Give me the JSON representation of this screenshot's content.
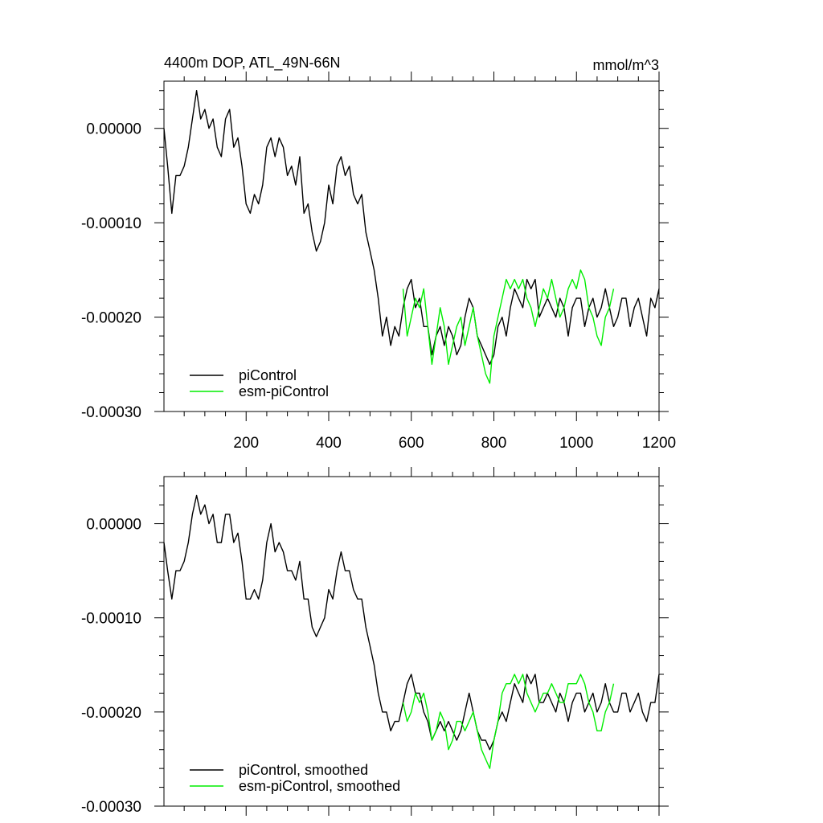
{
  "header": {
    "title": "4400m DOP, ATL_49N-66N",
    "units": "mmol/m^3"
  },
  "colors": {
    "picontrol": "#000000",
    "esm_picontrol": "#00ee00"
  },
  "chart_data": [
    {
      "type": "line",
      "title": "4400m DOP, ATL_49N-66N",
      "units_label": "mmol/m^3",
      "xlim": [
        1,
        1200
      ],
      "ylim": [
        -0.0003,
        5e-05
      ],
      "x_ticks": [
        200,
        400,
        600,
        800,
        1000,
        1200
      ],
      "x_tick_labels": [
        "200",
        "400",
        "600",
        "800",
        "1000",
        "1200"
      ],
      "y_ticks": [
        0.0,
        -0.0001,
        -0.0002,
        -0.0003
      ],
      "y_tick_labels": [
        "0.00000",
        "-0.00010",
        "-0.00020",
        "-0.00030"
      ],
      "legend_position": "bottom-left",
      "series": [
        {
          "name": "piControl",
          "color": "#000000",
          "x": [
            1,
            10,
            20,
            30,
            40,
            50,
            60,
            70,
            80,
            90,
            100,
            110,
            120,
            130,
            140,
            150,
            160,
            170,
            180,
            190,
            200,
            210,
            220,
            230,
            240,
            250,
            260,
            270,
            280,
            290,
            300,
            310,
            320,
            330,
            340,
            350,
            360,
            370,
            380,
            390,
            400,
            410,
            420,
            430,
            440,
            450,
            460,
            470,
            480,
            490,
            500,
            510,
            520,
            530,
            540,
            550,
            560,
            570,
            580,
            590,
            600,
            610,
            620,
            630,
            640,
            650,
            660,
            670,
            680,
            690,
            700,
            710,
            720,
            730,
            740,
            750,
            760,
            770,
            780,
            790,
            800,
            810,
            820,
            830,
            840,
            850,
            860,
            870,
            880,
            890,
            900,
            910,
            920,
            930,
            940,
            950,
            960,
            970,
            980,
            990,
            1000,
            1010,
            1020,
            1030,
            1040,
            1050,
            1060,
            1070,
            1080,
            1090,
            1100,
            1110,
            1120,
            1130,
            1140,
            1150,
            1160,
            1170,
            1180,
            1190,
            1200
          ],
          "values": [
            0.0,
            -4e-05,
            -9e-05,
            -5e-05,
            -5e-05,
            -4e-05,
            -2e-05,
            1e-05,
            4e-05,
            1e-05,
            2e-05,
            0.0,
            1e-05,
            -2e-05,
            -3e-05,
            1e-05,
            2e-05,
            -2e-05,
            -1e-05,
            -4e-05,
            -8e-05,
            -9e-05,
            -7e-05,
            -8e-05,
            -6e-05,
            -2e-05,
            -1e-05,
            -3e-05,
            -1e-05,
            -2e-05,
            -5e-05,
            -4e-05,
            -6e-05,
            -3e-05,
            -9e-05,
            -8e-05,
            -0.00011,
            -0.00013,
            -0.00012,
            -0.0001,
            -6e-05,
            -8e-05,
            -4e-05,
            -3e-05,
            -5e-05,
            -4e-05,
            -7e-05,
            -8e-05,
            -7e-05,
            -0.00011,
            -0.00013,
            -0.00015,
            -0.00018,
            -0.00022,
            -0.0002,
            -0.00023,
            -0.00021,
            -0.00022,
            -0.00019,
            -0.00017,
            -0.00016,
            -0.00019,
            -0.00018,
            -0.00021,
            -0.00021,
            -0.00024,
            -0.00022,
            -0.00021,
            -0.00023,
            -0.00021,
            -0.00022,
            -0.00024,
            -0.00023,
            -0.0002,
            -0.00018,
            -0.00019,
            -0.00022,
            -0.00023,
            -0.00024,
            -0.00025,
            -0.00024,
            -0.00021,
            -0.0002,
            -0.00022,
            -0.00019,
            -0.00017,
            -0.00018,
            -0.00019,
            -0.00016,
            -0.00017,
            -0.00016,
            -0.0002,
            -0.00019,
            -0.00018,
            -0.00019,
            -0.0002,
            -0.00018,
            -0.00019,
            -0.00022,
            -0.00019,
            -0.00018,
            -0.00018,
            -0.00021,
            -0.00019,
            -0.00018,
            -0.0002,
            -0.00019,
            -0.00017,
            -0.00019,
            -0.00021,
            -0.0002,
            -0.00018,
            -0.00018,
            -0.00021,
            -0.00019,
            -0.00018,
            -0.0002,
            -0.00022,
            -0.00018,
            -0.00019,
            -0.00017
          ]
        },
        {
          "name": "esm-piControl",
          "color": "#00ee00",
          "x": [
            580,
            590,
            600,
            610,
            620,
            630,
            640,
            650,
            660,
            670,
            680,
            690,
            700,
            710,
            720,
            730,
            740,
            750,
            760,
            770,
            780,
            790,
            800,
            810,
            820,
            830,
            840,
            850,
            860,
            870,
            880,
            890,
            900,
            910,
            920,
            930,
            940,
            950,
            960,
            970,
            980,
            990,
            1000,
            1010,
            1020,
            1030,
            1040,
            1050,
            1060,
            1070,
            1080,
            1090
          ],
          "values": [
            -0.00017,
            -0.00022,
            -0.0002,
            -0.00018,
            -0.00019,
            -0.00017,
            -0.00021,
            -0.00025,
            -0.00022,
            -0.00019,
            -0.00021,
            -0.00025,
            -0.00023,
            -0.00021,
            -0.0002,
            -0.00023,
            -0.00021,
            -0.00019,
            -0.00022,
            -0.00024,
            -0.00026,
            -0.00027,
            -0.00022,
            -0.0002,
            -0.00018,
            -0.00016,
            -0.00017,
            -0.00016,
            -0.00017,
            -0.00016,
            -0.00018,
            -0.00019,
            -0.00021,
            -0.00019,
            -0.00017,
            -0.00018,
            -0.00016,
            -0.00018,
            -0.0002,
            -0.00019,
            -0.00017,
            -0.00016,
            -0.00017,
            -0.00015,
            -0.00016,
            -0.00019,
            -0.0002,
            -0.00022,
            -0.00023,
            -0.0002,
            -0.00019,
            -0.00017
          ]
        }
      ]
    },
    {
      "type": "line",
      "title": "",
      "xlim": [
        1,
        1200
      ],
      "ylim": [
        -0.0003,
        5e-05
      ],
      "x_ticks": [
        200,
        400,
        600,
        800,
        1000,
        1200
      ],
      "x_tick_labels": [],
      "y_ticks": [
        0.0,
        -0.0001,
        -0.0002,
        -0.0003
      ],
      "y_tick_labels": [
        "0.00000",
        "-0.00010",
        "-0.00020",
        "-0.00030"
      ],
      "legend_position": "bottom-left",
      "series": [
        {
          "name": "piControl, smoothed",
          "color": "#000000",
          "x": [
            1,
            10,
            20,
            30,
            40,
            50,
            60,
            70,
            80,
            90,
            100,
            110,
            120,
            130,
            140,
            150,
            160,
            170,
            180,
            190,
            200,
            210,
            220,
            230,
            240,
            250,
            260,
            270,
            280,
            290,
            300,
            310,
            320,
            330,
            340,
            350,
            360,
            370,
            380,
            390,
            400,
            410,
            420,
            430,
            440,
            450,
            460,
            470,
            480,
            490,
            500,
            510,
            520,
            530,
            540,
            550,
            560,
            570,
            580,
            590,
            600,
            610,
            620,
            630,
            640,
            650,
            660,
            670,
            680,
            690,
            700,
            710,
            720,
            730,
            740,
            750,
            760,
            770,
            780,
            790,
            800,
            810,
            820,
            830,
            840,
            850,
            860,
            870,
            880,
            890,
            900,
            910,
            920,
            930,
            940,
            950,
            960,
            970,
            980,
            990,
            1000,
            1010,
            1020,
            1030,
            1040,
            1050,
            1060,
            1070,
            1080,
            1090,
            1100,
            1110,
            1120,
            1130,
            1140,
            1150,
            1160,
            1170,
            1180,
            1190,
            1200
          ],
          "values": [
            -2e-05,
            -5e-05,
            -8e-05,
            -5e-05,
            -5e-05,
            -4e-05,
            -2e-05,
            1e-05,
            3e-05,
            1e-05,
            2e-05,
            0.0,
            1e-05,
            -2e-05,
            -2e-05,
            1e-05,
            1e-05,
            -2e-05,
            -1e-05,
            -4e-05,
            -8e-05,
            -8e-05,
            -7e-05,
            -8e-05,
            -6e-05,
            -2e-05,
            0.0,
            -3e-05,
            -2e-05,
            -3e-05,
            -5e-05,
            -5e-05,
            -6e-05,
            -4e-05,
            -8e-05,
            -8e-05,
            -0.00011,
            -0.00012,
            -0.00011,
            -0.0001,
            -7e-05,
            -8e-05,
            -5e-05,
            -3e-05,
            -5e-05,
            -5e-05,
            -7e-05,
            -8e-05,
            -8e-05,
            -0.00011,
            -0.00013,
            -0.00015,
            -0.00018,
            -0.0002,
            -0.0002,
            -0.00022,
            -0.00021,
            -0.00021,
            -0.00019,
            -0.00017,
            -0.00016,
            -0.00018,
            -0.00018,
            -0.0002,
            -0.00021,
            -0.00023,
            -0.00022,
            -0.00021,
            -0.00022,
            -0.00021,
            -0.00022,
            -0.00023,
            -0.00022,
            -0.0002,
            -0.00018,
            -0.0002,
            -0.00022,
            -0.00023,
            -0.00023,
            -0.00024,
            -0.00023,
            -0.00021,
            -0.0002,
            -0.00021,
            -0.00019,
            -0.00017,
            -0.00018,
            -0.00019,
            -0.00016,
            -0.00017,
            -0.00016,
            -0.00019,
            -0.00019,
            -0.00018,
            -0.00019,
            -0.0002,
            -0.00018,
            -0.00019,
            -0.00021,
            -0.00019,
            -0.00018,
            -0.00018,
            -0.0002,
            -0.00019,
            -0.00018,
            -0.0002,
            -0.00019,
            -0.00017,
            -0.00019,
            -0.0002,
            -0.0002,
            -0.00018,
            -0.00018,
            -0.0002,
            -0.00019,
            -0.00018,
            -0.0002,
            -0.00021,
            -0.00019,
            -0.00019,
            -0.00016
          ]
        },
        {
          "name": "esm-piControl, smoothed",
          "color": "#00ee00",
          "x": [
            580,
            590,
            600,
            610,
            620,
            630,
            640,
            650,
            660,
            670,
            680,
            690,
            700,
            710,
            720,
            730,
            740,
            750,
            760,
            770,
            780,
            790,
            800,
            810,
            820,
            830,
            840,
            850,
            860,
            870,
            880,
            890,
            900,
            910,
            920,
            930,
            940,
            950,
            960,
            970,
            980,
            990,
            1000,
            1010,
            1020,
            1030,
            1040,
            1050,
            1060,
            1070,
            1080,
            1090
          ],
          "values": [
            -0.00019,
            -0.00021,
            -0.0002,
            -0.00018,
            -0.00019,
            -0.00018,
            -0.0002,
            -0.00023,
            -0.00022,
            -0.0002,
            -0.00021,
            -0.00024,
            -0.00023,
            -0.00021,
            -0.00021,
            -0.00022,
            -0.00021,
            -0.0002,
            -0.00022,
            -0.00024,
            -0.00025,
            -0.00026,
            -0.00023,
            -0.00021,
            -0.00018,
            -0.00017,
            -0.00017,
            -0.00016,
            -0.00017,
            -0.00016,
            -0.00018,
            -0.00019,
            -0.0002,
            -0.00019,
            -0.00018,
            -0.00018,
            -0.00017,
            -0.00018,
            -0.00019,
            -0.00019,
            -0.00017,
            -0.00017,
            -0.00017,
            -0.00016,
            -0.00017,
            -0.00019,
            -0.0002,
            -0.00022,
            -0.00022,
            -0.0002,
            -0.00019,
            -0.00017
          ]
        }
      ]
    }
  ]
}
